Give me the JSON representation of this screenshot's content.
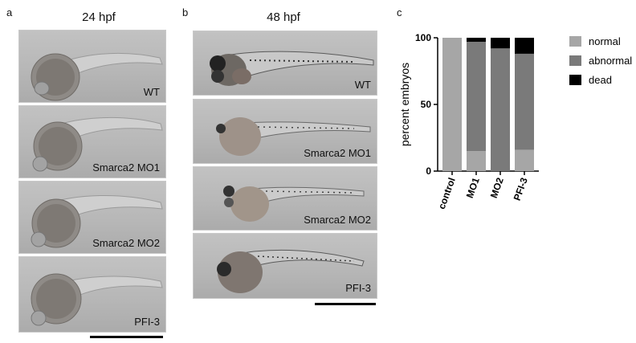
{
  "figure": {
    "panels": {
      "a": {
        "letter": "a",
        "title": "24 hpf",
        "images": [
          "WT",
          "Smarca2 MO1",
          "Smarca2 MO2",
          "PFI-3"
        ]
      },
      "b": {
        "letter": "b",
        "title": "48 hpf",
        "images": [
          "WT",
          "Smarca2 MO1",
          "Smarca2 MO2",
          "PFI-3"
        ]
      },
      "c": {
        "letter": "c"
      }
    }
  },
  "chart_data": {
    "type": "bar",
    "stacked": true,
    "categories": [
      "control",
      "MO1",
      "MO2",
      "PFI-3"
    ],
    "ylabel": "percent embryos",
    "xlabel": "",
    "ylim": [
      0,
      100
    ],
    "yticks": [
      0,
      50,
      100
    ],
    "legend_position": "right",
    "series": [
      {
        "name": "normal",
        "color": "#a6a6a6",
        "values": [
          100,
          15,
          0,
          16
        ]
      },
      {
        "name": "abnormal",
        "color": "#7a7a7a",
        "values": [
          0,
          82,
          92,
          72
        ]
      },
      {
        "name": "dead",
        "color": "#000000",
        "values": [
          0,
          3,
          8,
          12
        ]
      }
    ]
  }
}
